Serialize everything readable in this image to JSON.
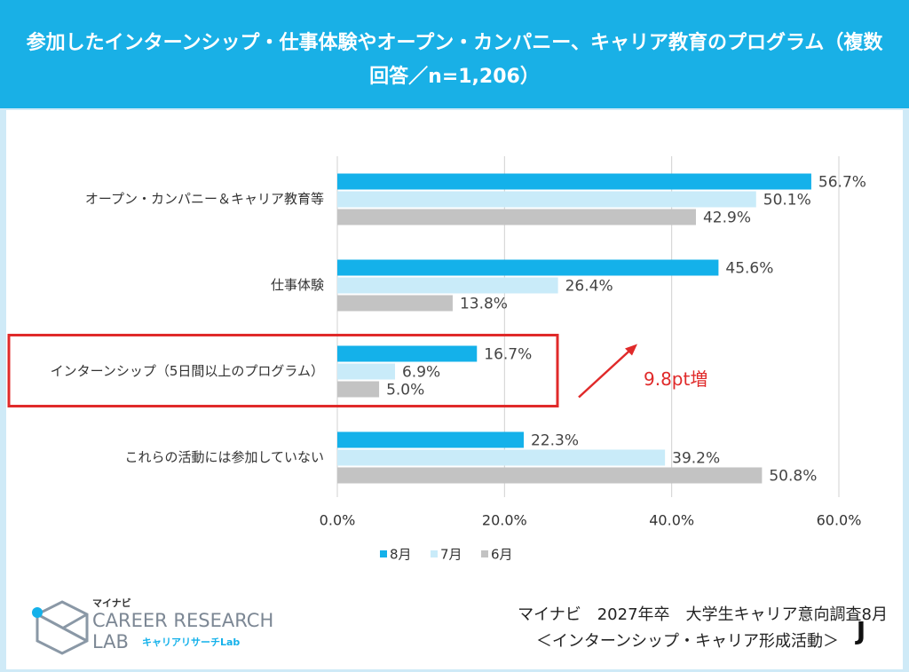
{
  "chart_data": {
    "type": "bar",
    "orientation": "horizontal",
    "title": "参加したインターンシップ・仕事体験やオープン・カンパニー、キャリア教育のプログラム（複数回答／n=1,206）",
    "categories": [
      "オープン・カンパニー＆キャリア教育等",
      "仕事体験",
      "インターンシップ（5日間以上のプログラム）",
      "これらの活動には参加していない"
    ],
    "series": [
      {
        "name": "8月",
        "color": "#14b1ea",
        "values": [
          56.7,
          45.6,
          16.7,
          22.3
        ],
        "value_labels": [
          "56.7%",
          "45.6%",
          "16.7%",
          "22.3%"
        ]
      },
      {
        "name": "7月",
        "color": "#c9ebf9",
        "values": [
          50.1,
          26.4,
          6.9,
          39.2
        ],
        "value_labels": [
          "50.1%",
          "26.4%",
          "6.9%",
          "39.2%"
        ]
      },
      {
        "name": "6月",
        "color": "#c3c3c3",
        "values": [
          42.9,
          13.8,
          5.0,
          50.8
        ],
        "value_labels": [
          "42.9%",
          "13.8%",
          "5.0%",
          "50.8%"
        ]
      }
    ],
    "xlim": [
      0,
      60
    ],
    "xticks": [
      {
        "value": 0,
        "label": "0.0%"
      },
      {
        "value": 20,
        "label": "20.0%"
      },
      {
        "value": 40,
        "label": "40.0%"
      },
      {
        "value": 60,
        "label": "60.0%"
      }
    ],
    "grid": true,
    "legend": "bottom",
    "highlight": 2,
    "highlight_color": "#e02a2a",
    "annotation": "9.8pt増"
  },
  "branding": {
    "small": "マイナビ",
    "name": "CAREER RESEARCH",
    "lab": "LAB",
    "sub": "キャリアリサーチLab"
  },
  "source": [
    "マイナビ　2027年卒　大学生キャリア意向調査8月",
    "＜インターンシップ・キャリア形成活動＞"
  ],
  "watermark": "J"
}
